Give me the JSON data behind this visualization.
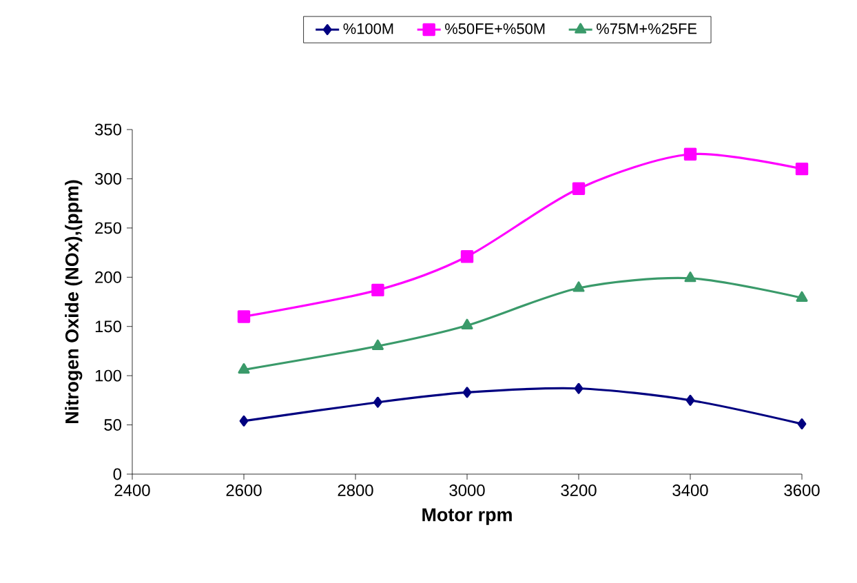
{
  "chart_data": {
    "type": "line",
    "xlabel": "Motor rpm",
    "ylabel": "Nitrogen Oxide (NOx),(ppm)",
    "x": [
      2600,
      2840,
      3000,
      3200,
      3400,
      3600
    ],
    "series": [
      {
        "name": "%100M",
        "color": "#000080",
        "marker": "diamond",
        "values": [
          54,
          73,
          83,
          87,
          75,
          51
        ]
      },
      {
        "name": "%50FE+%50M",
        "color": "#ff00ff",
        "marker": "square",
        "values": [
          160,
          187,
          221,
          290,
          325,
          310
        ]
      },
      {
        "name": "%75M+%25FE",
        "color": "#3a9a6a",
        "marker": "triangle",
        "values": [
          106,
          130,
          151,
          189,
          199,
          179
        ]
      }
    ],
    "xlim": [
      2400,
      3600
    ],
    "xticks": [
      2400,
      2600,
      2800,
      3000,
      3200,
      3400,
      3600
    ],
    "ylim": [
      0,
      350
    ],
    "yticks": [
      0,
      50,
      100,
      150,
      200,
      250,
      300,
      350
    ],
    "legend": "top",
    "grid": false
  }
}
